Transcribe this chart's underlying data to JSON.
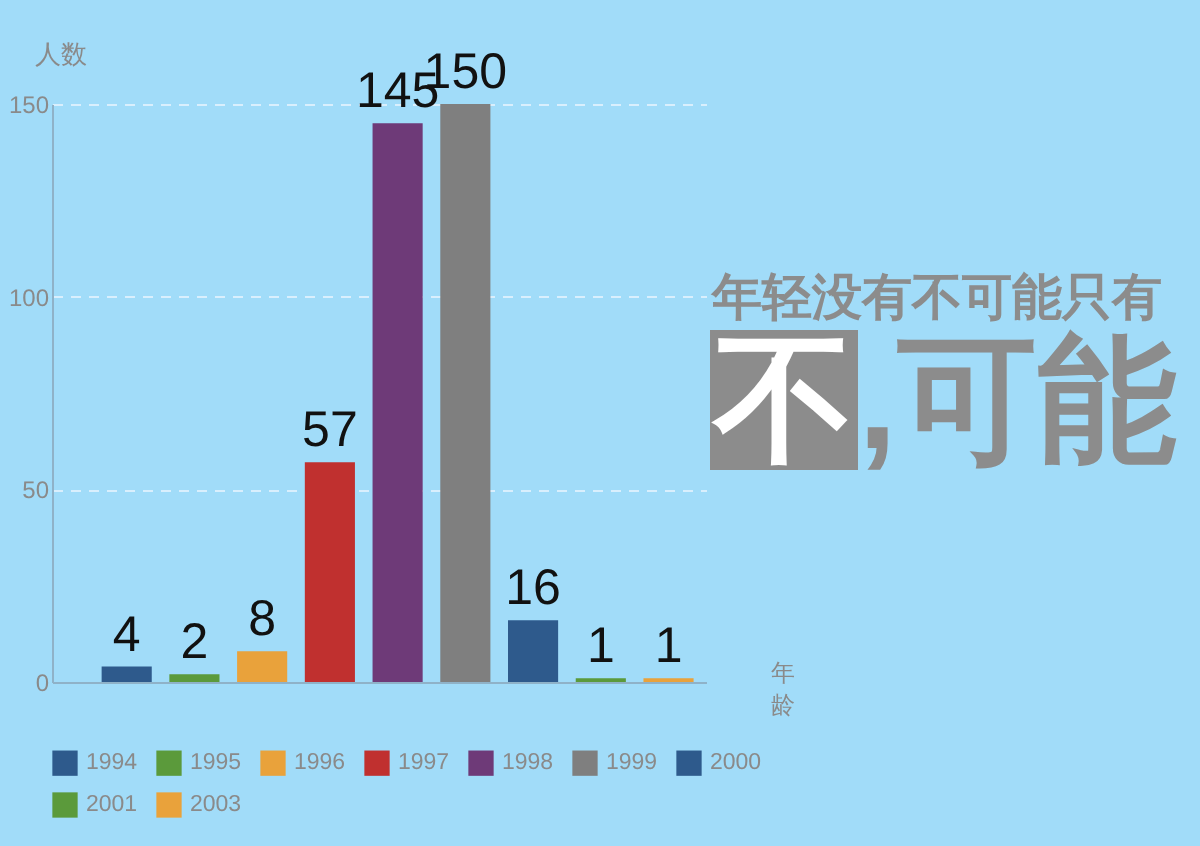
{
  "chart_data": {
    "type": "bar",
    "ylabel": "人数",
    "xlabel": "年龄",
    "categories": [
      null
    ],
    "series": [
      {
        "name": "1994",
        "color": "#2e5a8c",
        "values": [
          4
        ]
      },
      {
        "name": "1995",
        "color": "#5b9a3b",
        "values": [
          2
        ]
      },
      {
        "name": "1996",
        "color": "#e9a23b",
        "values": [
          8
        ]
      },
      {
        "name": "1997",
        "color": "#c0302f",
        "values": [
          57
        ]
      },
      {
        "name": "1998",
        "color": "#6e3a78",
        "values": [
          145
        ]
      },
      {
        "name": "1999",
        "color": "#7f7f7f",
        "values": [
          150
        ]
      },
      {
        "name": "2000",
        "color": "#2e5a8c",
        "values": [
          16
        ]
      },
      {
        "name": "2001",
        "color": "#5b9a3b",
        "values": [
          1
        ]
      },
      {
        "name": "2003",
        "color": "#e9a23b",
        "values": [
          1
        ]
      }
    ],
    "ylim": [
      0,
      150
    ],
    "yticks": [
      0,
      50,
      100,
      150
    ],
    "grid": "y",
    "legend": "bottom",
    "data_labels": true,
    "annotations": [
      "年轻没有不可能只有",
      "不,可能"
    ]
  }
}
